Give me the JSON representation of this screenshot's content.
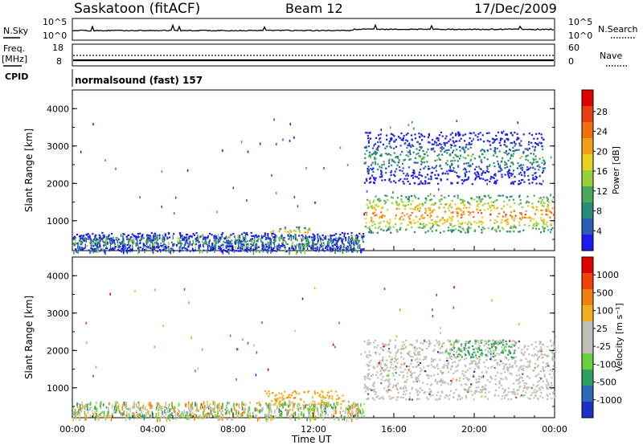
{
  "header": {
    "station": "Saskatoon (fitACF)",
    "beam": "Beam 12",
    "date": "17/Dec/2009"
  },
  "strip_panels": {
    "nsky_label": "N.Sky",
    "nsky_ticks": [
      "10^5",
      "10^0"
    ],
    "nsearch_label": "N.Search",
    "nsearch_ticks": [
      "10^5",
      "10^0"
    ],
    "freq_label": "Freq.",
    "freq_unit": "[MHz]",
    "freq_ticks": [
      "18",
      "8"
    ],
    "nave_label": "Nave",
    "nave_ticks": [
      "60",
      "0"
    ],
    "cpid_label": "CPID",
    "cpid_value": "normalsound (fast) 157"
  },
  "chart_data": [
    {
      "type": "heatmap",
      "parameter": "power",
      "ylabel": "Slant Range [km]",
      "yticks": [
        "1000",
        "2000",
        "3000",
        "4000"
      ],
      "ylim": [
        200,
        4500
      ],
      "xlim_hours": [
        0,
        24
      ],
      "colorbar": {
        "label": "Power [dB]",
        "ticks": [
          "4",
          "8",
          "12",
          "16",
          "20",
          "24",
          "28"
        ],
        "colors": [
          "#1c1cf0",
          "#2c5cb4",
          "#2a8a7a",
          "#4aa85a",
          "#96d03c",
          "#e8d020",
          "#f2a018",
          "#f07010",
          "#e84010",
          "#e00000"
        ]
      },
      "features": [
        {
          "x": [
            0,
            14.5
          ],
          "range_km": [
            200,
            700
          ],
          "description_level": "low"
        },
        {
          "x": [
            9.8,
            11.8
          ],
          "range_km": [
            600,
            850
          ],
          "level_db": 22
        },
        {
          "x": [
            14.5,
            24
          ],
          "range_km": [
            700,
            1700
          ],
          "level_db": 26
        },
        {
          "x": [
            14.5,
            23.5
          ],
          "range_km": [
            2000,
            3400
          ],
          "level_db": 12
        }
      ]
    },
    {
      "type": "heatmap",
      "parameter": "velocity",
      "ylabel": "Slant Range [km]",
      "yticks": [
        "1000",
        "2000",
        "3000",
        "4000"
      ],
      "ylim": [
        200,
        4500
      ],
      "xlim_hours": [
        0,
        24
      ],
      "colorbar": {
        "label": "Velocity [m s⁻¹]",
        "ticks": [
          "1000",
          "500",
          "100",
          "25",
          "-25",
          "-100",
          "-500",
          "-1000"
        ],
        "colors": [
          "#1c30c8",
          "#2c6ab4",
          "#30a060",
          "#6ad03c",
          "#c0c0b8",
          "#c0c0b8",
          "#f0b020",
          "#f08010",
          "#f04010",
          "#e00000"
        ]
      },
      "features": [
        {
          "x": [
            9.5,
            13.5
          ],
          "range_km": [
            550,
            950
          ],
          "velocity_ms": -150
        },
        {
          "x": [
            14.5,
            24
          ],
          "range_km": [
            700,
            2300
          ],
          "velocity_ms": 0
        },
        {
          "x": [
            18.5,
            22
          ],
          "range_km": [
            1800,
            2300
          ],
          "velocity_ms": 150
        }
      ]
    }
  ],
  "x_axis": {
    "label": "Time UT",
    "ticks": [
      "00:00",
      "04:00",
      "08:00",
      "12:00",
      "16:00",
      "20:00",
      "00:00"
    ]
  }
}
